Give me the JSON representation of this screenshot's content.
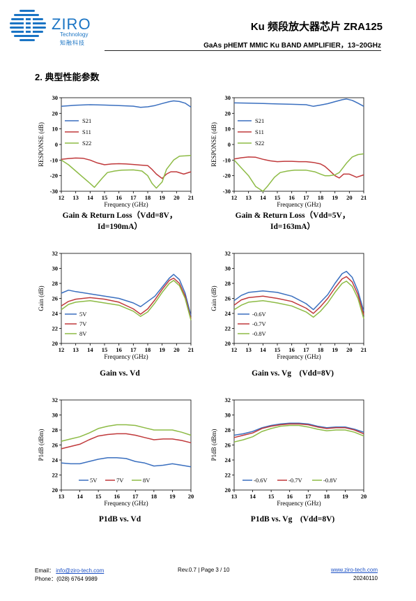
{
  "header": {
    "logo_word": "ZIRO",
    "logo_sub": "Technology",
    "logo_cn": "知融科技",
    "title": "Ku 频段放大器芯片 ZRA125",
    "subtitle": "GaAs pHEMT MMIC Ku BAND AMPLIFIER，13~20GHz"
  },
  "section": {
    "title": "2.  典型性能参数"
  },
  "captions": [
    {
      "line1": "Gain & Return Loss（Vdd=8V，",
      "line2": "Id=190mA）"
    },
    {
      "line1": "Gain & Return Loss（Vdd=5V，",
      "line2": "Id=163mA）"
    },
    {
      "line1": "Gain vs. Vd",
      "line2": ""
    },
    {
      "line1": "Gain vs. Vg    (Vdd=8V)",
      "line2": ""
    },
    {
      "line1": "P1dB vs. Vd",
      "line2": ""
    },
    {
      "line1": "P1dB vs. Vg    (Vdd=8V)",
      "line2": ""
    }
  ],
  "footer": {
    "email_label": "Email：",
    "email": "info@ziro-tech.com",
    "phone": "Phone：(028) 6764 9989",
    "page": "Rev.0.7 | Page 3 / 10",
    "website": "www.ziro-tech.com",
    "date": "20240110"
  },
  "chart_data": [
    {
      "type": "line",
      "xlabel": "Frequency (GHz)",
      "ylabel": "RESPONSE (dB)",
      "xlim": [
        12,
        21
      ],
      "ylim": [
        -30,
        30
      ],
      "xticks": [
        12,
        13,
        14,
        15,
        16,
        17,
        18,
        19,
        20,
        21
      ],
      "yticks": [
        -30,
        -20,
        -10,
        0,
        10,
        20,
        30
      ],
      "legend": "left-middle",
      "series": [
        {
          "name": "S21",
          "color": "#3a6fbf",
          "x": [
            12,
            13,
            14,
            15,
            16,
            17,
            17.5,
            18,
            18.5,
            19,
            19.5,
            19.8,
            20.2,
            20.6,
            21
          ],
          "y": [
            24.5,
            25.2,
            25.5,
            25.3,
            25,
            24.6,
            23.8,
            24.2,
            25,
            26.3,
            27.5,
            28,
            27.6,
            26.5,
            24
          ]
        },
        {
          "name": "S11",
          "color": "#c0393b",
          "x": [
            12,
            12.5,
            13,
            13.5,
            14,
            14.5,
            15,
            15.5,
            16,
            16.5,
            17,
            17.5,
            18,
            18.3,
            18.6,
            19,
            19.3,
            19.6,
            20,
            20.5,
            21
          ],
          "y": [
            -9.5,
            -9,
            -8.7,
            -8.8,
            -10,
            -11.8,
            -13,
            -12.5,
            -12.3,
            -12.5,
            -12.8,
            -13.2,
            -13.5,
            -16,
            -19,
            -21.8,
            -19,
            -17.5,
            -17.5,
            -19,
            -17.5
          ]
        },
        {
          "name": "S22",
          "color": "#8dbb45",
          "x": [
            12,
            12.5,
            13,
            13.5,
            14,
            14.3,
            14.8,
            15.2,
            15.7,
            16.2,
            17,
            17.6,
            18,
            18.3,
            18.6,
            19,
            19.3,
            19.8,
            20.2,
            20.6,
            21
          ],
          "y": [
            -10,
            -13,
            -17,
            -21,
            -25,
            -27.5,
            -22,
            -18,
            -17,
            -16.5,
            -16.3,
            -17,
            -20,
            -25,
            -28,
            -24,
            -16,
            -10,
            -7.5,
            -7.3,
            -7
          ]
        }
      ]
    },
    {
      "type": "line",
      "xlabel": "Frequency (GHz)",
      "ylabel": "RESPONSE (dB)",
      "xlim": [
        12,
        21
      ],
      "ylim": [
        -30,
        30
      ],
      "xticks": [
        12,
        13,
        14,
        15,
        16,
        17,
        18,
        19,
        20,
        21
      ],
      "yticks": [
        -30,
        -20,
        -10,
        0,
        10,
        20,
        30
      ],
      "legend": "left-middle",
      "series": [
        {
          "name": "S21",
          "color": "#3a6fbf",
          "x": [
            12,
            13,
            14,
            15,
            16,
            17,
            17.5,
            18,
            18.5,
            19,
            19.5,
            19.8,
            20.2,
            20.6,
            21
          ],
          "y": [
            26.7,
            26.5,
            26.3,
            26,
            25.8,
            25.5,
            24.5,
            25.3,
            26.2,
            27.5,
            28.7,
            29.2,
            28.3,
            26.5,
            24.5
          ]
        },
        {
          "name": "S11",
          "color": "#c0393b",
          "x": [
            12,
            12.5,
            13,
            13.5,
            14,
            14.5,
            15,
            15.5,
            16,
            16.5,
            17,
            17.5,
            18,
            18.3,
            18.6,
            19,
            19.3,
            19.6,
            20,
            20.5,
            21
          ],
          "y": [
            -9.3,
            -8.5,
            -8,
            -8.2,
            -9.5,
            -10.5,
            -11,
            -10.8,
            -10.8,
            -11,
            -11,
            -11.5,
            -12.5,
            -14,
            -16.5,
            -20,
            -21.5,
            -19,
            -19,
            -21,
            -19.5
          ]
        },
        {
          "name": "S22",
          "color": "#8dbb45",
          "x": [
            12,
            12.5,
            13,
            13.5,
            14,
            14.3,
            14.8,
            15.2,
            15.7,
            16.2,
            17,
            17.6,
            18,
            18.3,
            18.6,
            19,
            19.3,
            19.8,
            20.2,
            20.6,
            21
          ],
          "y": [
            -10,
            -15,
            -20,
            -27,
            -30,
            -27,
            -21,
            -18,
            -17,
            -16.5,
            -16.5,
            -17.5,
            -19,
            -20,
            -20,
            -19.5,
            -18,
            -12,
            -8,
            -6.5,
            -6
          ]
        }
      ]
    },
    {
      "type": "line",
      "xlabel": "Frequency (GHz)",
      "ylabel": "Gain (dB)",
      "xlim": [
        12,
        21
      ],
      "ylim": [
        20,
        32
      ],
      "xticks": [
        12,
        13,
        14,
        15,
        16,
        17,
        18,
        19,
        20,
        21
      ],
      "yticks": [
        20,
        22,
        24,
        26,
        28,
        30,
        32
      ],
      "legend": "bottom-left",
      "series": [
        {
          "name": "5V",
          "color": "#3a6fbf",
          "x": [
            12,
            12.5,
            13,
            14,
            15,
            16,
            17,
            17.5,
            18,
            18.5,
            19,
            19.5,
            19.8,
            20.2,
            20.6,
            21
          ],
          "y": [
            26.7,
            27.1,
            26.9,
            26.6,
            26.3,
            26,
            25.4,
            24.9,
            25.6,
            26.3,
            27.5,
            28.7,
            29.2,
            28.5,
            26.7,
            23.7
          ]
        },
        {
          "name": "7V",
          "color": "#c0393b",
          "x": [
            12,
            12.5,
            13,
            14,
            15,
            16,
            17,
            17.5,
            18,
            18.5,
            19,
            19.5,
            19.8,
            20.2,
            20.6,
            21
          ],
          "y": [
            25,
            25.6,
            25.9,
            26.1,
            25.9,
            25.5,
            24.6,
            23.9,
            24.6,
            25.8,
            27.2,
            28.4,
            28.7,
            28,
            26.3,
            23.3
          ]
        },
        {
          "name": "8V",
          "color": "#8dbb45",
          "x": [
            12,
            12.5,
            13,
            14,
            15,
            16,
            17,
            17.5,
            18,
            18.5,
            19,
            19.5,
            19.8,
            20.2,
            20.6,
            21
          ],
          "y": [
            24.5,
            25.2,
            25.5,
            25.7,
            25.4,
            25.1,
            24.3,
            23.6,
            24.2,
            25.4,
            26.8,
            28,
            28.4,
            27.7,
            26,
            23.1
          ]
        }
      ]
    },
    {
      "type": "line",
      "xlabel": "Frequency (GHz)",
      "ylabel": "Gain (dB)",
      "xlim": [
        12,
        21
      ],
      "ylim": [
        20,
        32
      ],
      "xticks": [
        12,
        13,
        14,
        15,
        16,
        17,
        18,
        19,
        20,
        21
      ],
      "yticks": [
        20,
        22,
        24,
        26,
        28,
        30,
        32
      ],
      "legend": "bottom-left",
      "series": [
        {
          "name": "-0.6V",
          "color": "#3a6fbf",
          "x": [
            12,
            12.5,
            13,
            14,
            15,
            16,
            17,
            17.5,
            18,
            18.5,
            19,
            19.5,
            19.8,
            20.2,
            20.6,
            21
          ],
          "y": [
            25.7,
            26.4,
            26.8,
            27,
            26.8,
            26.3,
            25.3,
            24.5,
            25.5,
            26.5,
            28,
            29.3,
            29.6,
            28.8,
            27,
            24.3
          ]
        },
        {
          "name": "-0.7V",
          "color": "#c0393b",
          "x": [
            12,
            12.5,
            13,
            14,
            15,
            16,
            17,
            17.5,
            18,
            18.5,
            19,
            19.5,
            19.8,
            20.2,
            20.6,
            21
          ],
          "y": [
            25.1,
            25.8,
            26.1,
            26.3,
            26,
            25.6,
            24.7,
            24,
            24.9,
            26,
            27.4,
            28.6,
            28.9,
            28.2,
            26.5,
            23.8
          ]
        },
        {
          "name": "-0.8V",
          "color": "#8dbb45",
          "x": [
            12,
            12.5,
            13,
            14,
            15,
            16,
            17,
            17.5,
            18,
            18.5,
            19,
            19.5,
            19.8,
            20.2,
            20.6,
            21
          ],
          "y": [
            24.5,
            25.1,
            25.5,
            25.7,
            25.4,
            25,
            24.2,
            23.5,
            24.3,
            25.4,
            26.8,
            28,
            28.3,
            27.6,
            26,
            23.3
          ]
        }
      ]
    },
    {
      "type": "line",
      "xlabel": "Frequency (GHz)",
      "ylabel": "P1dB (dBm)",
      "xlim": [
        13,
        20
      ],
      "ylim": [
        20,
        32
      ],
      "xticks": [
        13,
        14,
        15,
        16,
        17,
        18,
        19,
        20
      ],
      "yticks": [
        20,
        22,
        24,
        26,
        28,
        30,
        32
      ],
      "legend": "bottom-center",
      "series": [
        {
          "name": "5V",
          "color": "#3a6fbf",
          "x": [
            13,
            13.5,
            14,
            14.5,
            15,
            15.5,
            16,
            16.5,
            17,
            17.5,
            18,
            18.5,
            19,
            19.5,
            20
          ],
          "y": [
            23.6,
            23.5,
            23.5,
            23.8,
            24.1,
            24.3,
            24.3,
            24.2,
            23.8,
            23.6,
            23.2,
            23.3,
            23.5,
            23.3,
            23.1
          ]
        },
        {
          "name": "7V",
          "color": "#c0393b",
          "x": [
            13,
            13.5,
            14,
            14.5,
            15,
            15.5,
            16,
            16.5,
            17,
            17.5,
            18,
            18.5,
            19,
            19.5,
            20
          ],
          "y": [
            25.5,
            25.8,
            26.1,
            26.7,
            27.2,
            27.4,
            27.5,
            27.5,
            27.3,
            27,
            26.7,
            26.8,
            26.8,
            26.6,
            26.3
          ]
        },
        {
          "name": "8V",
          "color": "#8dbb45",
          "x": [
            13,
            13.5,
            14,
            14.5,
            15,
            15.5,
            16,
            16.5,
            17,
            17.5,
            18,
            18.5,
            19,
            19.5,
            20
          ],
          "y": [
            26.5,
            26.8,
            27.1,
            27.6,
            28.2,
            28.5,
            28.7,
            28.7,
            28.6,
            28.3,
            28,
            28,
            28,
            27.7,
            27.3
          ]
        }
      ]
    },
    {
      "type": "line",
      "xlabel": "Frequency (GHz)",
      "ylabel": "P1dB (dBm)",
      "xlim": [
        13,
        20
      ],
      "ylim": [
        20,
        32
      ],
      "xticks": [
        13,
        14,
        15,
        16,
        17,
        18,
        19,
        20
      ],
      "yticks": [
        20,
        22,
        24,
        26,
        28,
        30,
        32
      ],
      "legend": "bottom-center",
      "series": [
        {
          "name": "-0.6V",
          "color": "#3a6fbf",
          "x": [
            13,
            13.5,
            14,
            14.5,
            15,
            15.5,
            16,
            16.5,
            17,
            17.5,
            18,
            18.5,
            19,
            19.5,
            20
          ],
          "y": [
            27.3,
            27.5,
            27.8,
            28.3,
            28.6,
            28.8,
            28.9,
            28.9,
            28.8,
            28.5,
            28.3,
            28.4,
            28.4,
            28.1,
            27.7
          ]
        },
        {
          "name": "-0.7V",
          "color": "#c0393b",
          "x": [
            13,
            13.5,
            14,
            14.5,
            15,
            15.5,
            16,
            16.5,
            17,
            17.5,
            18,
            18.5,
            19,
            19.5,
            20
          ],
          "y": [
            27,
            27.3,
            27.6,
            28.2,
            28.5,
            28.7,
            28.8,
            28.8,
            28.7,
            28.4,
            28.2,
            28.3,
            28.3,
            28,
            27.5
          ]
        },
        {
          "name": "-0.8V",
          "color": "#8dbb45",
          "x": [
            13,
            13.5,
            14,
            14.5,
            15,
            15.5,
            16,
            16.5,
            17,
            17.5,
            18,
            18.5,
            19,
            19.5,
            20
          ],
          "y": [
            26.4,
            26.7,
            27.1,
            27.8,
            28.2,
            28.5,
            28.6,
            28.6,
            28.4,
            28.1,
            27.9,
            28,
            28,
            27.7,
            27.2
          ]
        }
      ]
    }
  ]
}
